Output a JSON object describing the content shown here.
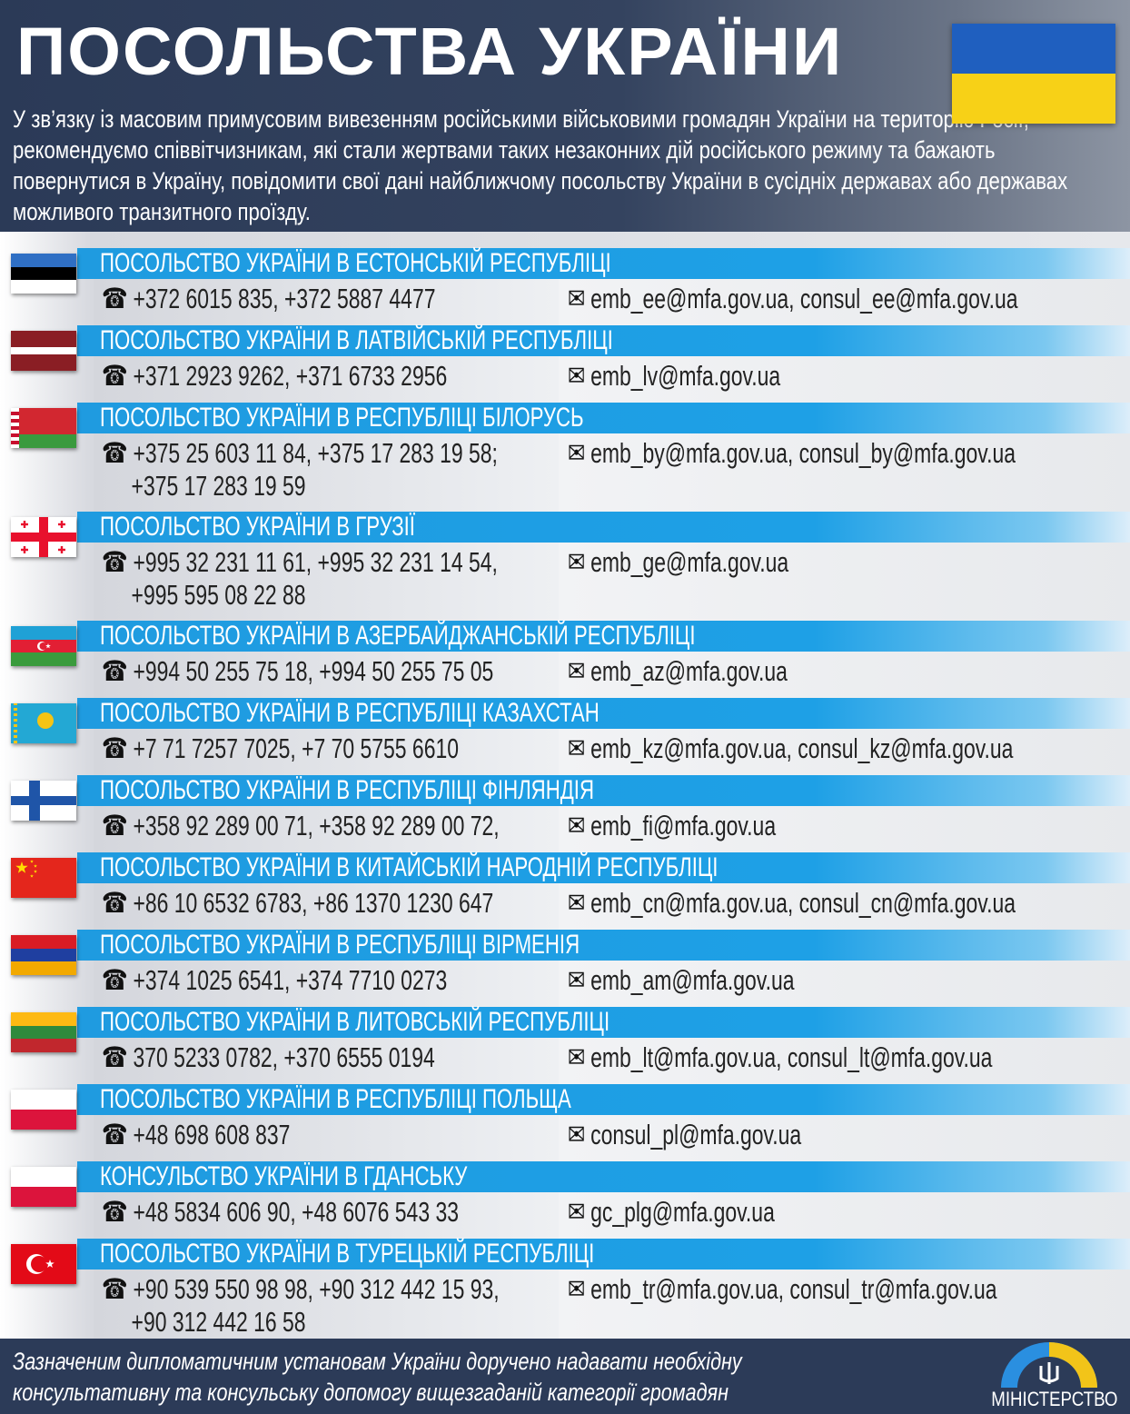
{
  "header": {
    "title": "ПОСОЛЬСТВА УКРАЇНИ",
    "intro": "У зв’язку із масовим примусовим вивезенням російськими військовими громадян України на територію Росії, рекомендуємо співвітчизникам, які стали жертвами таких незаконних дій російського режиму та бажають повернутися в Україну, повідомити свої дані найближчому посольству України в сусідніх державах або державах можливого транзитного проїзду.",
    "flag_colors": [
      "#1f5fbf",
      "#f7d117"
    ]
  },
  "icons": {
    "phone": "☎",
    "mail": "✉"
  },
  "embassies": [
    {
      "flag": "estonia",
      "title": "ПОСОЛЬСТВО УКРАЇНИ В ЕСТОНСЬКІЙ РЕСПУБЛІЦІ",
      "phone": "+372 6015 835, +372 5887 4477",
      "email": "emb_ee@mfa.gov.ua, consul_ee@mfa.gov.ua"
    },
    {
      "flag": "latvia",
      "title": "ПОСОЛЬСТВО УКРАЇНИ В ЛАТВІЙСЬКІЙ РЕСПУБЛІЦІ",
      "phone": "+371 2923 9262, +371 6733 2956",
      "email": "emb_lv@mfa.gov.ua"
    },
    {
      "flag": "belarus",
      "title": "ПОСОЛЬСТВО УКРАЇНИ В РЕСПУБЛІЦІ БІЛОРУСЬ",
      "phone": "+375 25 603 11 84, +375 17 283 19 58;",
      "phone2": "+375 17 283 19 59",
      "email": "emb_by@mfa.gov.ua, consul_by@mfa.gov.ua"
    },
    {
      "flag": "georgia",
      "title": "ПОСОЛЬСТВО УКРАЇНИ В ГРУЗІЇ",
      "phone": "+995 32 231 11 61, +995 32 231 14 54,",
      "phone2": "+995 595 08 22 88",
      "email": "emb_ge@mfa.gov.ua"
    },
    {
      "flag": "azerbaijan",
      "title": "ПОСОЛЬСТВО УКРАЇНИ В АЗЕРБАЙДЖАНСЬКІЙ РЕСПУБЛІЦІ",
      "phone": "+994 50 255 75 18, +994 50 255 75 05",
      "email": "emb_az@mfa.gov.ua"
    },
    {
      "flag": "kazakhstan",
      "title": "ПОСОЛЬСТВО УКРАЇНИ В РЕСПУБЛІЦІ КАЗАХСТАН",
      "phone": "+7 71 7257 7025, +7 70 5755 6610",
      "email": "emb_kz@mfa.gov.ua, consul_kz@mfa.gov.ua"
    },
    {
      "flag": "finland",
      "title": "ПОСОЛЬСТВО УКРАЇНИ В РЕСПУБЛІЦІ ФІНЛЯНДІЯ",
      "phone": "+358 92 289 00 71, +358 92 289 00 72,",
      "email": "emb_fi@mfa.gov.ua"
    },
    {
      "flag": "china",
      "title": "ПОСОЛЬСТВО УКРАЇНИ В КИТАЙСЬКІЙ НАРОДНІЙ РЕСПУБЛІЦІ",
      "phone": "+86 10 6532 6783, +86 1370 1230 647",
      "email": "emb_cn@mfa.gov.ua, consul_cn@mfa.gov.ua"
    },
    {
      "flag": "armenia",
      "title": "ПОСОЛЬСТВО УКРАЇНИ В РЕСПУБЛІЦІ ВІРМЕНІЯ",
      "phone": "+374 1025 6541, +374 7710 0273",
      "email": "emb_am@mfa.gov.ua"
    },
    {
      "flag": "lithuania",
      "title": "ПОСОЛЬСТВО УКРАЇНИ В ЛИТОВСЬКІЙ РЕСПУБЛІЦІ",
      "phone": "370 5233 0782, +370 6555 0194",
      "email": "emb_lt@mfa.gov.ua, consul_lt@mfa.gov.ua"
    },
    {
      "flag": "poland",
      "title": "ПОСОЛЬСТВО УКРАЇНИ В РЕСПУБЛІЦІ ПОЛЬЩА",
      "phone": "+48 698 608 837",
      "email": "consul_pl@mfa.gov.ua"
    },
    {
      "flag": "poland",
      "title": "КОНСУЛЬСТВО УКРАЇНИ В ГДАНСЬКУ",
      "phone": "+48 5834 606 90, +48 6076 543 33",
      "email": "gc_plg@mfa.gov.ua"
    },
    {
      "flag": "turkey",
      "title": "ПОСОЛЬСТВО УКРАЇНИ В ТУРЕЦЬКІЙ РЕСПУБЛІЦІ",
      "phone": "+90 539 550 98 98, +90 312 442 15 93,",
      "phone2": "+90 312 442 16 58",
      "email": "emb_tr@mfa.gov.ua, consul_tr@mfa.gov.ua"
    }
  ],
  "footer": {
    "text": "Зазначеним дипломатичним установам України доручено надавати необхідну консультативну та консульську допомогу вищезгаданій категорії громадян",
    "logo_text": "МІНІСТЕРСТВО"
  }
}
